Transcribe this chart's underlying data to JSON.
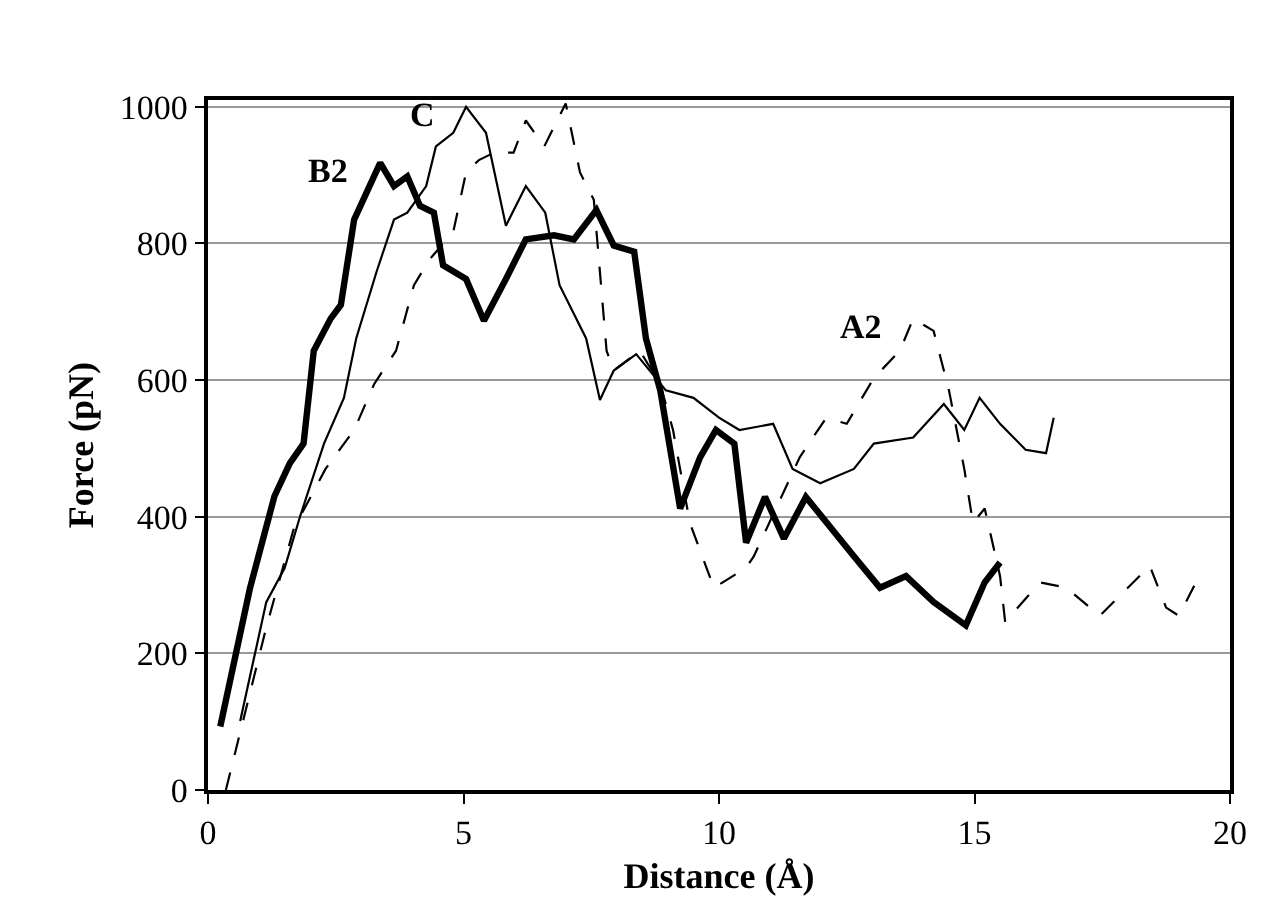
{
  "chart_data": {
    "type": "line",
    "xlabel": "Distance (Å)",
    "ylabel": "Force (pN)",
    "xlim": [
      0,
      20
    ],
    "xticks": [
      0,
      5,
      10,
      15,
      20
    ],
    "ylim": [
      0,
      1010
    ],
    "yticks": [
      0,
      200,
      400,
      600,
      800,
      1000
    ],
    "grid": "y",
    "marker": "none",
    "series": [
      {
        "color": "#000000",
        "line_style": "solid",
        "x": [
          0.24,
          0.82,
          1.3,
          1.6,
          1.87,
          2.07,
          2.4,
          2.6,
          2.86,
          3.37,
          3.64,
          3.9,
          4.15,
          4.42,
          4.6,
          5.05,
          5.4,
          5.83,
          6.22,
          6.77,
          7.16,
          7.6,
          7.94,
          8.34,
          8.57,
          8.85,
          9.24,
          9.63,
          9.94,
          10.3,
          10.53,
          10.9,
          11.27,
          11.7,
          12.64,
          13.15,
          13.66,
          14.2,
          14.83,
          15.2,
          15.5
        ],
        "values": [
          93,
          295,
          430,
          478,
          507,
          643,
          690,
          710,
          835,
          918,
          884,
          898,
          855,
          845,
          768,
          748,
          687,
          748,
          806,
          812,
          806,
          849,
          797,
          788,
          661,
          585,
          412,
          487,
          527,
          507,
          362,
          429,
          368,
          429,
          342,
          296,
          313,
          275,
          241,
          304,
          333
        ]
      },
      {
        "color": "#000000",
        "line_style": "solid",
        "x": [
          0.63,
          1.14,
          1.5,
          1.8,
          2.27,
          2.66,
          2.9,
          3.3,
          3.64,
          3.9,
          4.27,
          4.46,
          4.8,
          5.05,
          5.44,
          5.83,
          6.22,
          6.6,
          6.88,
          7.4,
          7.67,
          7.94,
          8.38,
          8.96,
          9.5,
          10.0,
          10.4,
          11.06,
          11.44,
          11.98,
          12.64,
          13.03,
          13.8,
          14.4,
          14.8,
          15.1,
          15.5,
          16.0,
          16.4,
          16.55
        ],
        "values": [
          101,
          275,
          325,
          400,
          507,
          574,
          661,
          759,
          835,
          845,
          884,
          942,
          962,
          1000,
          962,
          826,
          884,
          845,
          739,
          661,
          571,
          614,
          638,
          585,
          574,
          545,
          527,
          536,
          470,
          449,
          470,
          507,
          516,
          565,
          527,
          574,
          536,
          498,
          493,
          545
        ]
      },
      {
        "color": "#000000",
        "line_style": "dashed",
        "x": [
          0.35,
          1.14,
          1.68,
          2.3,
          2.86,
          3.25,
          3.68,
          4.03,
          4.34,
          4.8,
          5.05,
          5.3,
          5.6,
          5.98,
          6.22,
          6.58,
          7.0,
          7.28,
          7.55,
          7.8,
          7.94,
          8.45,
          8.85,
          9.1,
          9.43,
          9.9,
          10.53,
          10.68,
          11.58,
          12.1,
          12.5,
          13.03,
          13.54,
          13.8,
          14.2,
          14.5,
          14.8,
          14.97,
          15.2,
          15.5,
          15.6,
          16.28,
          16.8,
          17.45,
          17.84,
          18.43,
          18.75,
          19.0,
          19.3
        ],
        "values": [
          0,
          238,
          383,
          470,
          527,
          594,
          643,
          739,
          777,
          817,
          904,
          922,
          933,
          933,
          980,
          942,
          1005,
          904,
          864,
          643,
          614,
          643,
          594,
          527,
          391,
          296,
          325,
          342,
          487,
          545,
          536,
          603,
          643,
          690,
          672,
          585,
          470,
          391,
          412,
          313,
          246,
          304,
          296,
          255,
          284,
          328,
          267,
          255,
          299
        ]
      }
    ],
    "annotations": [
      {
        "text": "B2",
        "x": 3.37,
        "y": 918
      },
      {
        "text": "C",
        "x": 5.05,
        "y": 1000
      },
      {
        "text": "A2",
        "x": 13.8,
        "y": 690
      }
    ]
  }
}
